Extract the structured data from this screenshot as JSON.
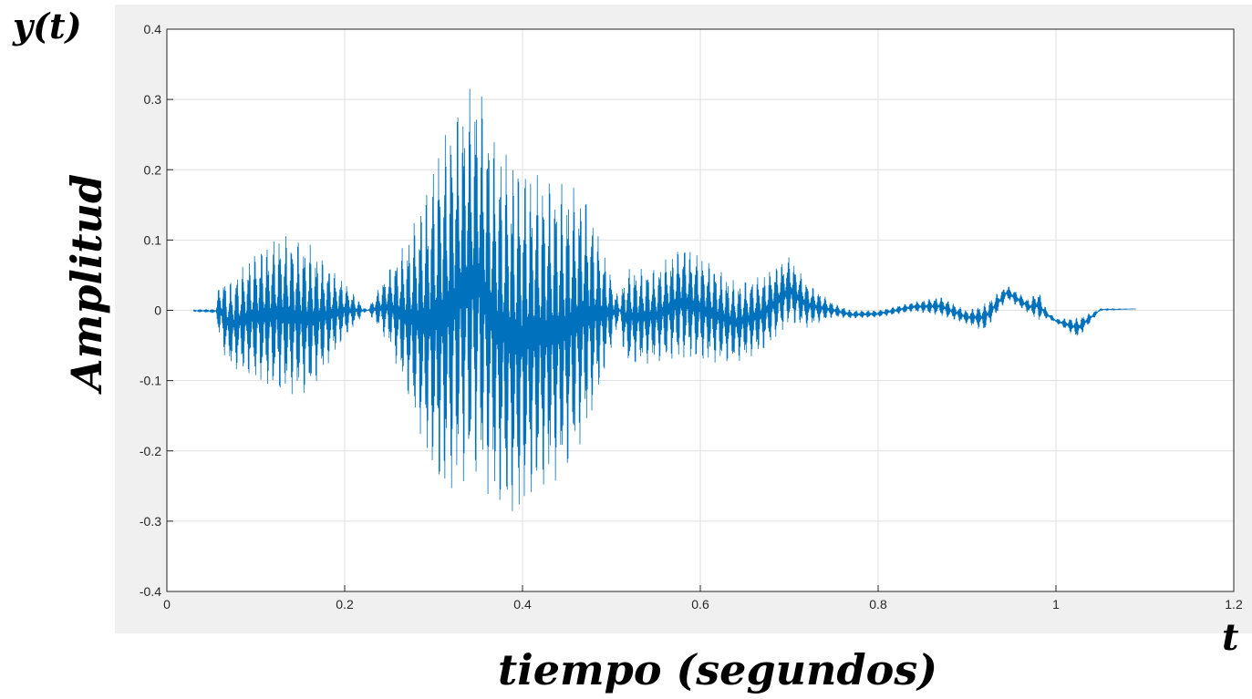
{
  "labels": {
    "corner_y": "y(t)",
    "corner_t": "t",
    "ylabel": "Amplitud",
    "xlabel": "tiempo (segundos)"
  },
  "colors": {
    "line": "#0072bd",
    "grid": "#dfdfdf",
    "axis": "#262626",
    "frame": "#f0f0f0",
    "plot_bg": "#ffffff"
  },
  "chart_data": {
    "type": "line",
    "title": "",
    "xlabel": "tiempo (segundos)",
    "ylabel": "Amplitud",
    "xlim": [
      0,
      1.2
    ],
    "ylim": [
      -0.4,
      0.4
    ],
    "x_ticks": [
      0,
      0.2,
      0.4,
      0.6,
      0.8,
      1,
      1.2
    ],
    "x_tick_labels": [
      "0",
      "0.2",
      "0.4",
      "0.6",
      "0.8",
      "1",
      "1.2"
    ],
    "y_ticks": [
      -0.4,
      -0.3,
      -0.2,
      -0.1,
      0,
      0.1,
      0.2,
      0.3,
      0.4
    ],
    "y_tick_labels": [
      "-0.4",
      "-0.3",
      "-0.2",
      "-0.1",
      "0",
      "0.1",
      "0.2",
      "0.3",
      "0.4"
    ],
    "grid": true,
    "series": [
      {
        "color": "#0072bd",
        "x": [
          0.03,
          0.055,
          0.06,
          0.07,
          0.1,
          0.13,
          0.16,
          0.2,
          0.225,
          0.25,
          0.27,
          0.29,
          0.31,
          0.33,
          0.35,
          0.37,
          0.39,
          0.41,
          0.43,
          0.45,
          0.47,
          0.49,
          0.51,
          0.515,
          0.55,
          0.58,
          0.61,
          0.64,
          0.67,
          0.7,
          0.72,
          0.75,
          0.77,
          0.8,
          0.84,
          0.87,
          0.9,
          0.92,
          0.945,
          0.97,
          0.98,
          0.99,
          1.0,
          1.025,
          1.05,
          1.09
        ],
        "upper": [
          0.001,
          0.002,
          0.05,
          0.04,
          0.085,
          0.11,
          0.095,
          0.04,
          0.0,
          0.06,
          0.1,
          0.17,
          0.25,
          0.3,
          0.33,
          0.24,
          0.22,
          0.2,
          0.19,
          0.18,
          0.17,
          0.09,
          0.01,
          0.06,
          0.06,
          0.095,
          0.07,
          0.04,
          0.05,
          0.078,
          0.04,
          0.01,
          0.0,
          0.0,
          0.012,
          0.02,
          0.0,
          0.01,
          0.036,
          0.015,
          0.03,
          0.0,
          -0.012,
          -0.01,
          0.002,
          0.002
        ],
        "lower": [
          -0.002,
          -0.004,
          -0.05,
          -0.08,
          -0.1,
          -0.12,
          -0.12,
          -0.04,
          0.0,
          -0.05,
          -0.12,
          -0.2,
          -0.27,
          -0.25,
          -0.24,
          -0.28,
          -0.3,
          -0.27,
          -0.25,
          -0.23,
          -0.18,
          -0.1,
          -0.01,
          -0.08,
          -0.075,
          -0.07,
          -0.075,
          -0.075,
          -0.06,
          -0.02,
          -0.025,
          -0.01,
          -0.012,
          -0.01,
          -0.002,
          -0.008,
          -0.02,
          -0.03,
          0.015,
          -0.005,
          -0.015,
          -0.012,
          -0.018,
          -0.04,
          0.0,
          0.002
        ]
      }
    ]
  }
}
